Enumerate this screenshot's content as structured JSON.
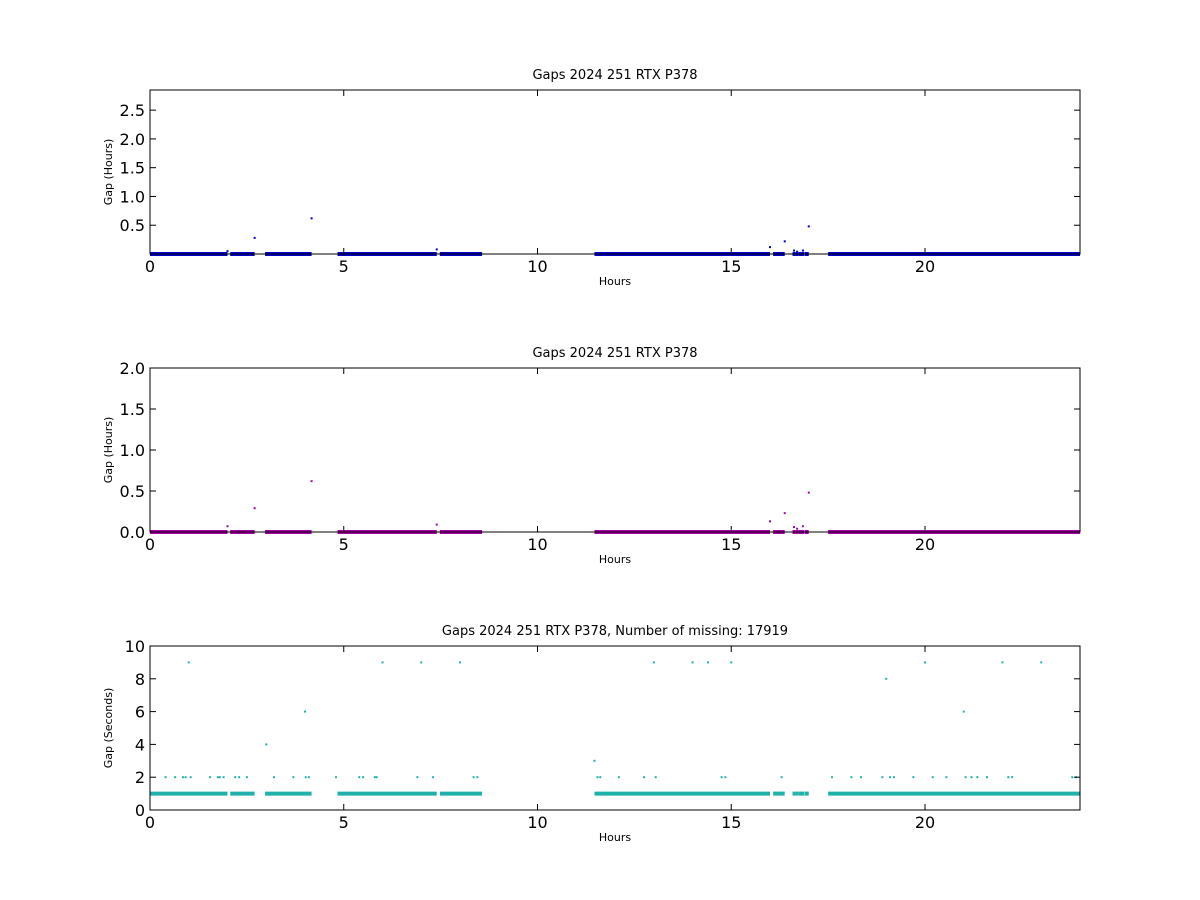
{
  "chart_data": [
    {
      "type": "scatter",
      "title": "Gaps 2024 251 RTX  P378",
      "xlabel": "Hours",
      "ylabel": "Gap (Hours)",
      "xlim": [
        0,
        24
      ],
      "ylim": [
        0,
        2.85
      ],
      "xticks": [
        0,
        5,
        10,
        15,
        20
      ],
      "yticks": [
        0.5,
        1.0,
        1.5,
        2.0,
        2.5
      ],
      "ytick_labels": [
        "0.5",
        "1.0",
        "1.5",
        "2.0",
        "2.5"
      ],
      "grid": false,
      "color": "#0000cc",
      "baseline_value": 0.0,
      "baseline_segments": [
        [
          0,
          2.0
        ],
        [
          2.07,
          2.7
        ],
        [
          2.97,
          4.17
        ],
        [
          4.84,
          7.4
        ],
        [
          7.48,
          8.57
        ],
        [
          11.47,
          16.0
        ],
        [
          16.08,
          16.38
        ],
        [
          16.9,
          17.0
        ],
        [
          17.5,
          24
        ]
      ],
      "baseline_points": [
        16.62,
        16.7,
        16.78,
        16.85
      ],
      "points": [
        {
          "x": 2.0,
          "y": 0.05
        },
        {
          "x": 2.7,
          "y": 0.28
        },
        {
          "x": 4.17,
          "y": 0.62
        },
        {
          "x": 7.4,
          "y": 0.08
        },
        {
          "x": 16.0,
          "y": 0.12
        },
        {
          "x": 16.38,
          "y": 0.22
        },
        {
          "x": 16.62,
          "y": 0.06
        },
        {
          "x": 16.7,
          "y": 0.04
        },
        {
          "x": 16.85,
          "y": 0.06
        },
        {
          "x": 17.0,
          "y": 0.48
        }
      ]
    },
    {
      "type": "scatter",
      "title": "Gaps 2024 251 RTX  P378",
      "xlabel": "Hours",
      "ylabel": "Gap (Hours)",
      "xlim": [
        0,
        24
      ],
      "ylim": [
        0,
        2.0
      ],
      "xticks": [
        0,
        5,
        10,
        15,
        20
      ],
      "yticks": [
        0.0,
        0.5,
        1.0,
        1.5,
        2.0
      ],
      "ytick_labels": [
        "0.0",
        "0.5",
        "1.0",
        "1.5",
        "2.0"
      ],
      "grid": false,
      "color": "#aa00aa",
      "baseline_value": 0.0,
      "baseline_segments": [
        [
          0,
          2.0
        ],
        [
          2.07,
          2.7
        ],
        [
          2.97,
          4.17
        ],
        [
          4.84,
          7.4
        ],
        [
          7.48,
          8.57
        ],
        [
          11.47,
          16.0
        ],
        [
          16.08,
          16.38
        ],
        [
          16.9,
          17.0
        ],
        [
          17.5,
          24
        ]
      ],
      "baseline_points": [
        16.62,
        16.7,
        16.78,
        16.85
      ],
      "points": [
        {
          "x": 2.0,
          "y": 0.07
        },
        {
          "x": 2.7,
          "y": 0.29
        },
        {
          "x": 4.17,
          "y": 0.62
        },
        {
          "x": 7.4,
          "y": 0.09
        },
        {
          "x": 16.0,
          "y": 0.13
        },
        {
          "x": 16.38,
          "y": 0.23
        },
        {
          "x": 16.62,
          "y": 0.06
        },
        {
          "x": 16.7,
          "y": 0.04
        },
        {
          "x": 16.85,
          "y": 0.07
        },
        {
          "x": 17.0,
          "y": 0.48
        }
      ]
    },
    {
      "type": "scatter",
      "title": "Gaps 2024 251 RTX  P378, Number of missing: 17919",
      "xlabel": "Hours",
      "ylabel": "Gap (Seconds)",
      "xlim": [
        0,
        24
      ],
      "ylim": [
        0,
        10
      ],
      "xticks": [
        0,
        5,
        10,
        15,
        20
      ],
      "yticks": [
        0,
        2,
        4,
        6,
        8,
        10
      ],
      "ytick_labels": [
        "0",
        "2",
        "4",
        "6",
        "8",
        "10"
      ],
      "grid": false,
      "color": "#20b2aa",
      "baseline_value": 1,
      "baseline_segments": [
        [
          0,
          2.0
        ],
        [
          2.07,
          2.7
        ],
        [
          2.97,
          4.17
        ],
        [
          4.84,
          7.4
        ],
        [
          7.48,
          8.57
        ],
        [
          11.47,
          16.0
        ],
        [
          16.08,
          16.38
        ],
        [
          16.9,
          17.0
        ],
        [
          17.5,
          24
        ]
      ],
      "baseline_points": [
        16.62,
        16.7,
        16.78,
        16.85
      ],
      "points": [
        {
          "x": 0.4,
          "y": 2
        },
        {
          "x": 0.65,
          "y": 2
        },
        {
          "x": 0.85,
          "y": 2
        },
        {
          "x": 0.92,
          "y": 2
        },
        {
          "x": 1.0,
          "y": 9
        },
        {
          "x": 1.05,
          "y": 2
        },
        {
          "x": 1.55,
          "y": 2
        },
        {
          "x": 1.75,
          "y": 2
        },
        {
          "x": 1.8,
          "y": 2
        },
        {
          "x": 1.9,
          "y": 2
        },
        {
          "x": 2.2,
          "y": 2
        },
        {
          "x": 2.3,
          "y": 2
        },
        {
          "x": 2.5,
          "y": 2
        },
        {
          "x": 3.0,
          "y": 4
        },
        {
          "x": 3.2,
          "y": 2
        },
        {
          "x": 3.7,
          "y": 2
        },
        {
          "x": 4.0,
          "y": 6
        },
        {
          "x": 4.02,
          "y": 2
        },
        {
          "x": 4.1,
          "y": 2
        },
        {
          "x": 4.8,
          "y": 2
        },
        {
          "x": 5.4,
          "y": 2
        },
        {
          "x": 5.5,
          "y": 2
        },
        {
          "x": 5.8,
          "y": 2
        },
        {
          "x": 5.85,
          "y": 2
        },
        {
          "x": 6.0,
          "y": 9
        },
        {
          "x": 6.9,
          "y": 2
        },
        {
          "x": 7.0,
          "y": 9
        },
        {
          "x": 7.3,
          "y": 2
        },
        {
          "x": 8.0,
          "y": 9
        },
        {
          "x": 8.35,
          "y": 2
        },
        {
          "x": 8.45,
          "y": 2
        },
        {
          "x": 11.47,
          "y": 3
        },
        {
          "x": 11.55,
          "y": 2
        },
        {
          "x": 11.62,
          "y": 2
        },
        {
          "x": 12.1,
          "y": 2
        },
        {
          "x": 12.75,
          "y": 2
        },
        {
          "x": 13.0,
          "y": 9
        },
        {
          "x": 13.05,
          "y": 2
        },
        {
          "x": 14.0,
          "y": 9
        },
        {
          "x": 14.4,
          "y": 9
        },
        {
          "x": 14.75,
          "y": 2
        },
        {
          "x": 14.85,
          "y": 2
        },
        {
          "x": 15.0,
          "y": 9
        },
        {
          "x": 16.3,
          "y": 2
        },
        {
          "x": 17.6,
          "y": 2
        },
        {
          "x": 18.1,
          "y": 2
        },
        {
          "x": 18.35,
          "y": 2
        },
        {
          "x": 18.9,
          "y": 2
        },
        {
          "x": 19.0,
          "y": 8
        },
        {
          "x": 19.1,
          "y": 2
        },
        {
          "x": 19.2,
          "y": 2
        },
        {
          "x": 19.7,
          "y": 2
        },
        {
          "x": 20.0,
          "y": 9
        },
        {
          "x": 20.2,
          "y": 2
        },
        {
          "x": 20.55,
          "y": 2
        },
        {
          "x": 21.0,
          "y": 6
        },
        {
          "x": 21.05,
          "y": 2
        },
        {
          "x": 21.2,
          "y": 2
        },
        {
          "x": 21.35,
          "y": 2
        },
        {
          "x": 21.6,
          "y": 2
        },
        {
          "x": 22.0,
          "y": 9
        },
        {
          "x": 22.15,
          "y": 2
        },
        {
          "x": 22.25,
          "y": 2
        },
        {
          "x": 23.0,
          "y": 9
        },
        {
          "x": 23.8,
          "y": 2
        },
        {
          "x": 23.9,
          "y": 2
        }
      ]
    }
  ]
}
